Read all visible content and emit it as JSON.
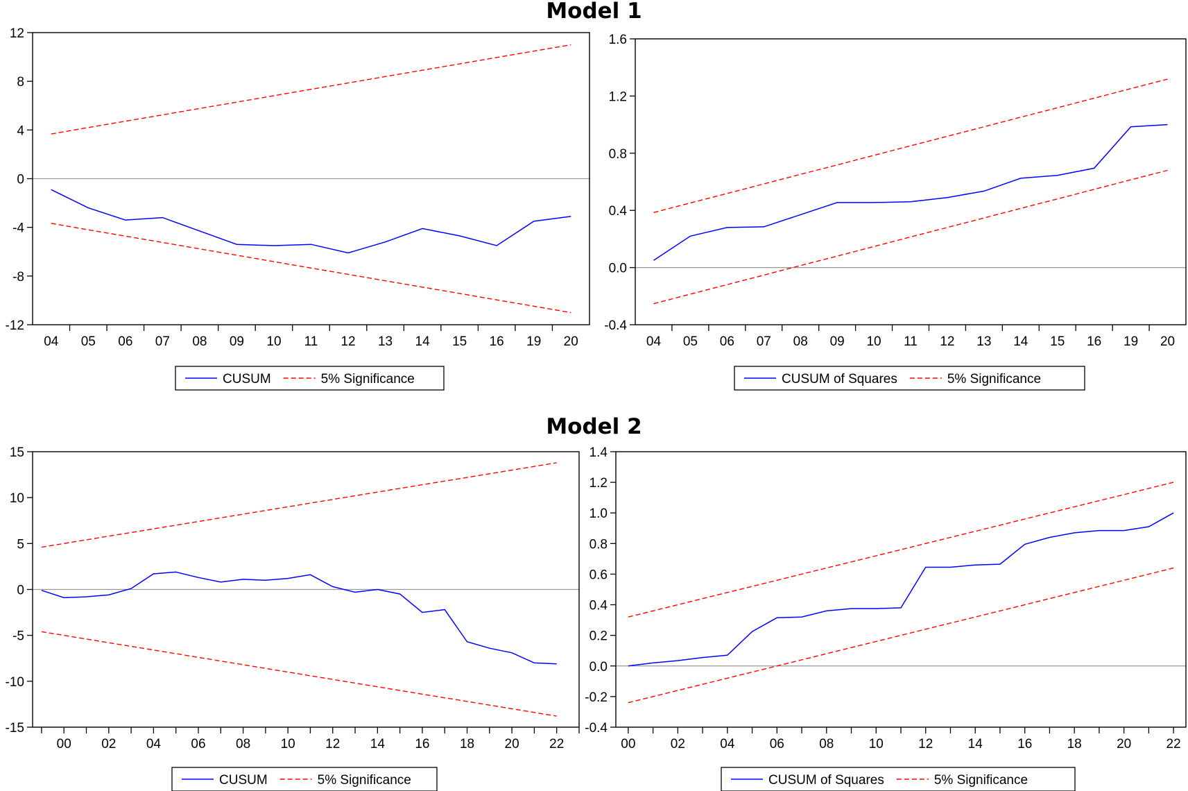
{
  "titles": {
    "model1": "Model 1",
    "model2": "Model 2"
  },
  "colors": {
    "cusum": "#0000ff",
    "significance": "#ff0000",
    "zero_line": "#999999",
    "frame": "#000000"
  },
  "chart_data": [
    {
      "type": "line",
      "panel": "model-1-cusum",
      "categories": [
        "04",
        "05",
        "06",
        "07",
        "08",
        "09",
        "10",
        "11",
        "12",
        "13",
        "14",
        "15",
        "16",
        "19",
        "20"
      ],
      "ylim": [
        -12,
        12
      ],
      "yticks": [
        -12,
        -8,
        -4,
        0,
        4,
        8,
        12
      ],
      "ytick_labels": [
        "-12",
        "-8",
        "-4",
        "0",
        "4",
        "8",
        "12"
      ],
      "grid": false,
      "series": [
        {
          "name": "CUSUM",
          "style": "solid",
          "values": [
            -0.9,
            -2.4,
            -3.4,
            -3.2,
            -4.3,
            -5.4,
            -5.5,
            -5.4,
            -6.1,
            -5.2,
            -4.1,
            -4.7,
            -5.5,
            -3.5,
            -3.1
          ]
        },
        {
          "name": "5% Significance",
          "style": "dashed",
          "values": [
            3.67,
            4.2,
            4.72,
            5.24,
            5.77,
            6.29,
            6.82,
            7.34,
            7.86,
            8.39,
            8.91,
            9.43,
            9.96,
            10.48,
            11.0
          ]
        },
        {
          "name": "",
          "style": "dashed",
          "values": [
            -3.67,
            -4.2,
            -4.72,
            -5.24,
            -5.77,
            -6.29,
            -6.82,
            -7.34,
            -7.86,
            -8.39,
            -8.91,
            -9.43,
            -9.96,
            -10.48,
            -11.0
          ]
        }
      ],
      "legend": [
        "CUSUM",
        "5% Significance"
      ]
    },
    {
      "type": "line",
      "panel": "model-1-cusum-squares",
      "categories": [
        "04",
        "05",
        "06",
        "07",
        "08",
        "09",
        "10",
        "11",
        "12",
        "13",
        "14",
        "15",
        "16",
        "19",
        "20"
      ],
      "ylim": [
        -0.4,
        1.6
      ],
      "yticks": [
        -0.4,
        0.0,
        0.4,
        0.8,
        1.2,
        1.6
      ],
      "ytick_labels": [
        "-0.4",
        "0.0",
        "0.4",
        "0.8",
        "1.2",
        "1.6"
      ],
      "grid": false,
      "series": [
        {
          "name": "CUSUM of Squares",
          "style": "solid",
          "values": [
            0.05,
            0.22,
            0.28,
            0.285,
            0.37,
            0.455,
            0.455,
            0.46,
            0.49,
            0.535,
            0.625,
            0.645,
            0.695,
            0.985,
            1.0
          ]
        },
        {
          "name": "5% Significance",
          "style": "dashed",
          "values": [
            0.385,
            0.452,
            0.518,
            0.585,
            0.652,
            0.718,
            0.785,
            0.852,
            0.918,
            0.985,
            1.052,
            1.118,
            1.185,
            1.252,
            1.318
          ]
        },
        {
          "name": "",
          "style": "dashed",
          "values": [
            -0.253,
            -0.186,
            -0.12,
            -0.053,
            0.014,
            0.08,
            0.147,
            0.214,
            0.28,
            0.347,
            0.414,
            0.48,
            0.547,
            0.614,
            0.68
          ]
        }
      ],
      "legend": [
        "CUSUM of Squares",
        "5% Significance"
      ]
    },
    {
      "type": "line",
      "panel": "model-2-cusum",
      "x_labels": [
        "00",
        "02",
        "04",
        "06",
        "08",
        "10",
        "12",
        "14",
        "16",
        "18",
        "20",
        "22"
      ],
      "x_label_positions": [
        2000,
        2002,
        2004,
        2006,
        2008,
        2010,
        2012,
        2014,
        2016,
        2018,
        2020,
        2022
      ],
      "xlim": [
        1998.6,
        2023
      ],
      "ylim": [
        -15,
        15
      ],
      "yticks": [
        -15,
        -10,
        -5,
        0,
        5,
        10,
        15
      ],
      "ytick_labels": [
        "-15",
        "-10",
        "-5",
        "0",
        "5",
        "10",
        "15"
      ],
      "grid": false,
      "x": [
        1999,
        2000,
        2001,
        2002,
        2003,
        2004,
        2005,
        2006,
        2007,
        2008,
        2009,
        2010,
        2011,
        2012,
        2013,
        2014,
        2015,
        2016,
        2017,
        2018,
        2019,
        2020,
        2021,
        2022
      ],
      "series": [
        {
          "name": "CUSUM",
          "style": "solid",
          "values": [
            -0.1,
            -0.9,
            -0.8,
            -0.6,
            0.1,
            1.7,
            1.9,
            1.3,
            0.8,
            1.1,
            1.0,
            1.2,
            1.6,
            0.3,
            -0.3,
            0.0,
            -0.5,
            -2.5,
            -2.2,
            -5.7,
            -6.4,
            -6.9,
            -8.0,
            -8.1
          ]
        },
        {
          "name": "5% Significance",
          "style": "dashed",
          "values": [
            4.6,
            5.0,
            5.4,
            5.8,
            6.2,
            6.6,
            7.0,
            7.4,
            7.8,
            8.2,
            8.6,
            9.0,
            9.4,
            9.8,
            10.2,
            10.6,
            11.0,
            11.4,
            11.8,
            12.2,
            12.6,
            13.0,
            13.4,
            13.8
          ]
        },
        {
          "name": "",
          "style": "dashed",
          "values": [
            -4.6,
            -5.0,
            -5.4,
            -5.8,
            -6.2,
            -6.6,
            -7.0,
            -7.4,
            -7.8,
            -8.2,
            -8.6,
            -9.0,
            -9.4,
            -9.8,
            -10.2,
            -10.6,
            -11.0,
            -11.4,
            -11.8,
            -12.2,
            -12.6,
            -13.0,
            -13.4,
            -13.8
          ]
        }
      ],
      "legend": [
        "CUSUM",
        "5% Significance"
      ]
    },
    {
      "type": "line",
      "panel": "model-2-cusum-squares",
      "x_labels": [
        "00",
        "02",
        "04",
        "06",
        "08",
        "10",
        "12",
        "14",
        "16",
        "18",
        "20",
        "22"
      ],
      "x_label_positions": [
        2000,
        2002,
        2004,
        2006,
        2008,
        2010,
        2012,
        2014,
        2016,
        2018,
        2020,
        2022
      ],
      "xlim": [
        1999.5,
        2022.5
      ],
      "ylim": [
        -0.4,
        1.4
      ],
      "yticks": [
        -0.4,
        -0.2,
        0.0,
        0.2,
        0.4,
        0.6,
        0.8,
        1.0,
        1.2,
        1.4
      ],
      "ytick_labels": [
        "-0.4",
        "-0.2",
        "0.0",
        "0.2",
        "0.4",
        "0.6",
        "0.8",
        "1.0",
        "1.2",
        "1.4"
      ],
      "grid": false,
      "x": [
        2000,
        2001,
        2002,
        2003,
        2004,
        2005,
        2006,
        2007,
        2008,
        2009,
        2010,
        2011,
        2012,
        2013,
        2014,
        2015,
        2016,
        2017,
        2018,
        2019,
        2020,
        2021,
        2022
      ],
      "series": [
        {
          "name": "CUSUM of Squares",
          "style": "solid",
          "values": [
            0.0,
            0.02,
            0.035,
            0.055,
            0.07,
            0.225,
            0.315,
            0.32,
            0.36,
            0.375,
            0.375,
            0.38,
            0.645,
            0.645,
            0.66,
            0.665,
            0.795,
            0.84,
            0.87,
            0.885,
            0.885,
            0.91,
            1.0
          ]
        },
        {
          "name": "5% Significance",
          "style": "dashed",
          "values": [
            0.32,
            0.36,
            0.4,
            0.44,
            0.48,
            0.52,
            0.56,
            0.6,
            0.64,
            0.68,
            0.72,
            0.76,
            0.8,
            0.84,
            0.88,
            0.92,
            0.96,
            1.0,
            1.04,
            1.08,
            1.12,
            1.16,
            1.2
          ]
        },
        {
          "name": "",
          "style": "dashed",
          "values": [
            -0.24,
            -0.2,
            -0.16,
            -0.12,
            -0.08,
            -0.04,
            0.0,
            0.04,
            0.08,
            0.12,
            0.16,
            0.2,
            0.24,
            0.28,
            0.32,
            0.36,
            0.4,
            0.44,
            0.48,
            0.52,
            0.56,
            0.6,
            0.64
          ]
        }
      ],
      "legend": [
        "CUSUM of Squares",
        "5% Significance"
      ]
    }
  ]
}
